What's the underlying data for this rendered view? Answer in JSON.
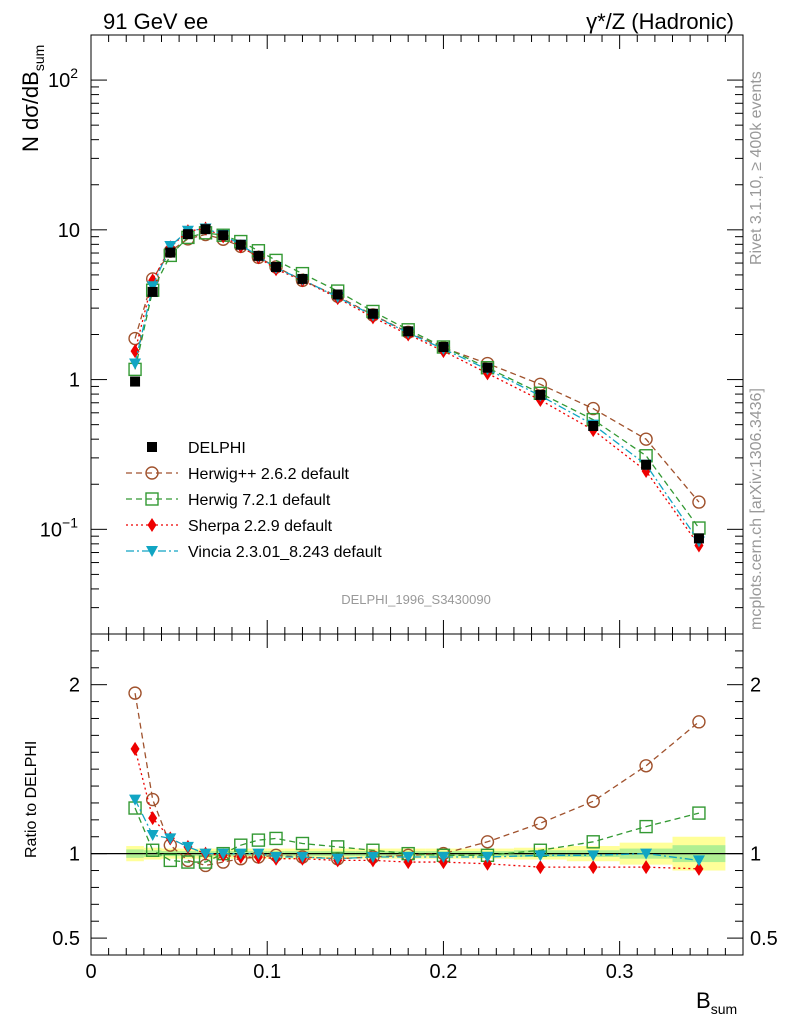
{
  "chart_data": {
    "type": "line",
    "header_left": "91 GeV ee",
    "header_right": "γ*/Z (Hadronic)",
    "ylabel_main": "N dσ/dB",
    "ylabel_main_sub": "sum",
    "ylabel_ratio": "Ratio to DELPHI",
    "xlabel": "B",
    "xlabel_sub": "sum",
    "side_text_1": "Rivet 3.1.10, ≥ 400k events",
    "side_text_2": "mcplots.cern.ch [arXiv:1306.3436]",
    "analysis_id": "DELPHI_1996_S3430090",
    "xlim": [
      0,
      0.37
    ],
    "ylim_main": [
      0.02,
      200
    ],
    "ylim_ratio": [
      0.4,
      2.3
    ],
    "x_ticks": [
      "0",
      "0.1",
      "0.2",
      "0.3"
    ],
    "x_tick_values": [
      0,
      0.1,
      0.2,
      0.3
    ],
    "y_ticks_main": [
      {
        "value": 0.1,
        "base": "10",
        "exp": "−1"
      },
      {
        "value": 1,
        "base": "1",
        "exp": ""
      },
      {
        "value": 10,
        "base": "10",
        "exp": ""
      },
      {
        "value": 100,
        "base": "10",
        "exp": "2"
      }
    ],
    "y_ticks_ratio": [
      {
        "value": 0.5,
        "label": "0.5"
      },
      {
        "value": 1,
        "label": "1"
      },
      {
        "value": 2,
        "label": "2"
      }
    ],
    "x": [
      0.025,
      0.035,
      0.045,
      0.055,
      0.065,
      0.075,
      0.085,
      0.095,
      0.105,
      0.12,
      0.14,
      0.16,
      0.18,
      0.2,
      0.225,
      0.255,
      0.285,
      0.315,
      0.345
    ],
    "x_half_widths": [
      0.005,
      0.005,
      0.005,
      0.005,
      0.005,
      0.005,
      0.005,
      0.005,
      0.005,
      0.01,
      0.01,
      0.01,
      0.01,
      0.01,
      0.015,
      0.015,
      0.015,
      0.015,
      0.015
    ],
    "band_inner": [
      0.025,
      0.02,
      0.015,
      0.015,
      0.015,
      0.015,
      0.015,
      0.015,
      0.015,
      0.015,
      0.015,
      0.015,
      0.015,
      0.015,
      0.015,
      0.02,
      0.02,
      0.03,
      0.05
    ],
    "band_outer": [
      0.045,
      0.035,
      0.03,
      0.03,
      0.03,
      0.03,
      0.03,
      0.03,
      0.03,
      0.03,
      0.03,
      0.03,
      0.03,
      0.03,
      0.03,
      0.035,
      0.045,
      0.065,
      0.1
    ],
    "data": {
      "name": "DELPHI",
      "color": "#000000",
      "values": [
        0.97,
        3.85,
        7.05,
        9.35,
        10.1,
        9.2,
        7.95,
        6.7,
        5.65,
        4.7,
        3.7,
        2.75,
        2.1,
        1.65,
        1.2,
        0.79,
        0.49,
        0.27,
        0.087
      ]
    },
    "series": [
      {
        "name": "Herwig++ 2.6.2 default",
        "color": "#a0522d",
        "marker": "open-circle",
        "dash": "6,4",
        "values": [
          1.88,
          4.7,
          7.2,
          8.7,
          9.3,
          8.65,
          7.75,
          6.55,
          5.65,
          4.6,
          3.6,
          2.7,
          2.07,
          1.63,
          1.28,
          0.93,
          0.64,
          0.4,
          0.152
        ],
        "ratio": [
          1.95,
          1.32,
          1.05,
          0.96,
          0.93,
          0.95,
          0.97,
          0.98,
          0.99,
          0.98,
          0.97,
          0.98,
          0.99,
          1.0,
          1.07,
          1.18,
          1.31,
          1.52,
          1.78
        ]
      },
      {
        "name": "Herwig 7.2.1 default",
        "color": "#339933",
        "marker": "open-square",
        "dash": "6,4",
        "values": [
          1.17,
          3.95,
          6.75,
          8.9,
          9.55,
          9.2,
          8.35,
          7.25,
          6.25,
          5.1,
          3.9,
          2.85,
          2.15,
          1.65,
          1.2,
          0.81,
          0.54,
          0.31,
          0.102
        ],
        "ratio": [
          1.27,
          1.02,
          0.96,
          0.95,
          0.95,
          1.0,
          1.05,
          1.08,
          1.09,
          1.06,
          1.04,
          1.02,
          1.0,
          0.99,
          0.99,
          1.02,
          1.07,
          1.16,
          1.24
        ]
      },
      {
        "name": "Sherpa 2.2.9 default",
        "color": "#ee0000",
        "marker": "filled-diamond",
        "dash": "2,3",
        "values": [
          1.55,
          4.6,
          7.65,
          9.8,
          10.2,
          9.05,
          7.75,
          6.55,
          5.45,
          4.6,
          3.5,
          2.6,
          2.0,
          1.55,
          1.1,
          0.73,
          0.46,
          0.245,
          0.078
        ],
        "ratio": [
          1.62,
          1.21,
          1.09,
          1.04,
          1.0,
          0.99,
          0.98,
          0.98,
          0.97,
          0.97,
          0.96,
          0.96,
          0.95,
          0.95,
          0.94,
          0.92,
          0.92,
          0.92,
          0.91
        ]
      },
      {
        "name": "Vincia 2.3.01_8.243 default",
        "color": "#11a5c3",
        "marker": "filled-triangle-down",
        "dash": "8,3,2,3",
        "values": [
          1.28,
          4.2,
          7.8,
          9.85,
          10.2,
          9.25,
          7.95,
          6.65,
          5.55,
          4.65,
          3.55,
          2.68,
          2.05,
          1.6,
          1.17,
          0.78,
          0.5,
          0.27,
          0.083
        ],
        "ratio": [
          1.32,
          1.11,
          1.09,
          1.04,
          1.0,
          1.0,
          1.0,
          1.0,
          0.98,
          0.98,
          0.97,
          0.98,
          0.98,
          0.98,
          0.98,
          0.99,
          0.99,
          1.0,
          0.96
        ]
      }
    ]
  }
}
